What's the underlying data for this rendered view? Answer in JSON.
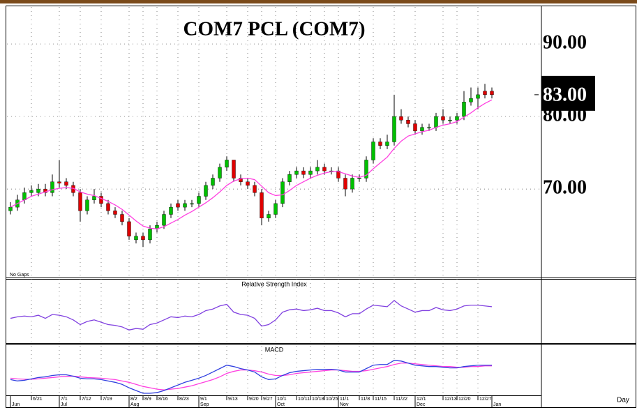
{
  "chart_data": {
    "type": "candlestick",
    "title": "COM7  PCL  (COM7)",
    "note": "No Gaps",
    "up_color": "#00c000",
    "down_color": "#e00000",
    "open": [
      67,
      67.5,
      68.5,
      69.5,
      69.5,
      70,
      69.5,
      71,
      71,
      70.5,
      69.5,
      67,
      68.5,
      69,
      68,
      67,
      66.5,
      65.5,
      63,
      63.5,
      63,
      64.5,
      65,
      66.5,
      68,
      67.5,
      68,
      68,
      69,
      70.5,
      71.5,
      73,
      74,
      71.5,
      71,
      70.5,
      69.5,
      66,
      66.5,
      68,
      71,
      72,
      72.5,
      72,
      72.5,
      73,
      72.5,
      72.5,
      71.5,
      70,
      71.5,
      71.5,
      74,
      76.5,
      76,
      76.5,
      80,
      79.5,
      79,
      78,
      78.5,
      78.5,
      80,
      79.5,
      79.5,
      80,
      82,
      82.5,
      83.5,
      83.5
    ],
    "high": [
      68.2,
      69.2,
      70.2,
      70.5,
      70.7,
      70.7,
      72,
      74,
      71.5,
      71,
      70,
      69,
      70,
      69.5,
      68.5,
      67.5,
      67,
      66,
      64,
      64,
      65,
      65.5,
      67,
      68,
      68.5,
      68.5,
      68.5,
      69.5,
      71,
      72,
      73.5,
      74.5,
      74,
      72,
      71.5,
      71,
      70,
      67,
      68.5,
      71.5,
      72.5,
      73,
      73,
      73,
      74,
      73.5,
      73,
      73,
      72,
      72,
      72,
      74.5,
      77,
      77,
      77.5,
      83,
      81,
      80,
      79.5,
      79,
      79,
      80.5,
      81,
      80,
      80.5,
      83.5,
      84,
      84,
      84.5,
      84
    ],
    "low": [
      66.5,
      67,
      68,
      69,
      69,
      69,
      69,
      70.2,
      70,
      69,
      65.5,
      66.5,
      68,
      67.5,
      66.5,
      66,
      65,
      63,
      62.5,
      62,
      62.5,
      64,
      64.5,
      66,
      67,
      67,
      67.5,
      67.5,
      68.5,
      70,
      71,
      72.5,
      71,
      70.5,
      70,
      69,
      65,
      65.5,
      66,
      67.5,
      70.5,
      71.5,
      71.5,
      71.5,
      72,
      72,
      72,
      71,
      69,
      69.5,
      71,
      71,
      73.5,
      75.5,
      75.5,
      76,
      79,
      78.5,
      77.5,
      77.5,
      78,
      78,
      79,
      79,
      79,
      79.5,
      81.5,
      81,
      82.5,
      82.5
    ],
    "close": [
      67.5,
      68.5,
      69.5,
      69.8,
      70,
      69.5,
      71,
      70.8,
      70.5,
      69.5,
      67,
      68.5,
      69,
      68,
      67,
      66.5,
      65.5,
      63.5,
      63.5,
      63,
      64.5,
      65,
      66.5,
      67.5,
      67.5,
      68,
      68,
      69,
      70.5,
      71.5,
      73,
      74,
      71.5,
      71,
      70.5,
      69.5,
      66,
      66.5,
      68,
      71,
      72,
      72.5,
      72,
      72.5,
      73,
      72.5,
      72.5,
      71.5,
      70,
      71.5,
      71.5,
      74,
      76.5,
      76,
      76.5,
      80,
      79.5,
      79,
      78,
      78.5,
      78.5,
      80,
      79.5,
      79.5,
      80,
      82,
      82.5,
      83,
      83,
      83
    ],
    "ma": {
      "color": "#ff40e0",
      "values": [
        67.5,
        68,
        68.5,
        69,
        69.3,
        69.6,
        69.9,
        70.1,
        70.2,
        70.1,
        69.6,
        69.3,
        69.1,
        68.7,
        68.3,
        67.8,
        67.2,
        66.4,
        65.6,
        64.9,
        64.6,
        64.5,
        64.8,
        65.3,
        65.8,
        66.4,
        66.9,
        67.5,
        68.1,
        68.8,
        69.6,
        70.5,
        71.1,
        71.4,
        71.5,
        71.3,
        70.4,
        69.5,
        69.1,
        69.2,
        69.8,
        70.5,
        71,
        71.5,
        71.9,
        72.2,
        72.4,
        72.4,
        72.1,
        71.8,
        71.6,
        71.9,
        72.8,
        73.6,
        74.4,
        75.6,
        76.6,
        77.3,
        77.6,
        77.9,
        78.1,
        78.5,
        78.8,
        79,
        79.3,
        79.9,
        80.5,
        81.2,
        81.8,
        82.3
      ]
    },
    "ylim": [
      57.8,
      95.1
    ],
    "yticks": [
      {
        "value": 70,
        "label": "70.00"
      },
      {
        "value": 80,
        "label": "80.00"
      },
      {
        "value": 90,
        "label": "90.00"
      }
    ],
    "last": {
      "value": 83,
      "label": "83.00"
    },
    "xlim": [
      -0.5,
      76
    ],
    "xticks": [
      {
        "value": 3,
        "label": "6/21"
      },
      {
        "value": 7,
        "label": "7/1"
      },
      {
        "value": 10,
        "label": "7/12"
      },
      {
        "value": 13,
        "label": "7/19"
      },
      {
        "value": 17,
        "label": "8/2"
      },
      {
        "value": 19,
        "label": "8/9"
      },
      {
        "value": 21,
        "label": "8/16"
      },
      {
        "value": 24,
        "label": "8/23"
      },
      {
        "value": 27,
        "label": "9/1"
      },
      {
        "value": 31,
        "label": "9/13"
      },
      {
        "value": 34,
        "label": "9/20"
      },
      {
        "value": 36,
        "label": "9/27"
      },
      {
        "value": 38,
        "label": "10/1"
      },
      {
        "value": 41,
        "label": "10/11"
      },
      {
        "value": 43,
        "label": "10/18"
      },
      {
        "value": 45,
        "label": "10/25"
      },
      {
        "value": 47,
        "label": "11/1"
      },
      {
        "value": 50,
        "label": "11/8"
      },
      {
        "value": 52,
        "label": "11/15"
      },
      {
        "value": 55,
        "label": "11/22"
      },
      {
        "value": 58,
        "label": "12/1"
      },
      {
        "value": 62,
        "label": "12/13"
      },
      {
        "value": 64,
        "label": "12/20"
      },
      {
        "value": 67,
        "label": "12/27"
      }
    ],
    "month_ticks": [
      {
        "value": 0,
        "label": "Jun"
      },
      {
        "value": 7,
        "label": "Jul"
      },
      {
        "value": 17,
        "label": "Aug"
      },
      {
        "value": 27,
        "label": "Sep"
      },
      {
        "value": 38,
        "label": "Oct"
      },
      {
        "value": 47,
        "label": "Nov"
      },
      {
        "value": 58,
        "label": "Dec"
      },
      {
        "value": 69,
        "label": "Jan"
      }
    ],
    "x_unit": "Day",
    "rsi": {
      "title": "Relative Strength Index",
      "color": "#8040e0",
      "ylim": [
        20,
        90
      ],
      "values": [
        50,
        52,
        53,
        52,
        54,
        50,
        55,
        54,
        52,
        48,
        42,
        46,
        48,
        45,
        42,
        41,
        39,
        35,
        37,
        36,
        42,
        44,
        48,
        52,
        51,
        53,
        52,
        55,
        60,
        62,
        66,
        68,
        58,
        55,
        54,
        50,
        40,
        42,
        48,
        58,
        61,
        62,
        60,
        61,
        63,
        60,
        60,
        57,
        52,
        56,
        56,
        62,
        67,
        66,
        65,
        73,
        66,
        62,
        58,
        60,
        60,
        64,
        61,
        60,
        62,
        66,
        67,
        67,
        66,
        65
      ]
    },
    "macd": {
      "title": "MACD",
      "color": "#3040e0",
      "ylim": [
        -3,
        3
      ],
      "values": [
        -0.8,
        -1.0,
        -0.9,
        -0.7,
        -0.5,
        -0.4,
        -0.2,
        -0.1,
        -0.1,
        -0.3,
        -0.6,
        -0.7,
        -0.7,
        -0.8,
        -1.0,
        -1.2,
        -1.5,
        -2.0,
        -2.4,
        -2.8,
        -2.8,
        -2.7,
        -2.4,
        -2.0,
        -1.6,
        -1.2,
        -0.9,
        -0.6,
        -0.2,
        0.3,
        0.8,
        1.3,
        1.1,
        0.8,
        0.6,
        0.3,
        -0.4,
        -0.8,
        -0.7,
        -0.2,
        0.2,
        0.4,
        0.5,
        0.6,
        0.7,
        0.7,
        0.7,
        0.6,
        0.3,
        0.3,
        0.3,
        0.8,
        1.3,
        1.4,
        1.4,
        2.0,
        1.9,
        1.6,
        1.3,
        1.2,
        1.1,
        1.1,
        1.0,
        0.9,
        0.9,
        1.1,
        1.2,
        1.3,
        1.3,
        1.3
      ],
      "signal": {
        "color": "#ff40e0",
        "values": [
          -0.6,
          -0.7,
          -0.75,
          -0.75,
          -0.7,
          -0.6,
          -0.5,
          -0.4,
          -0.35,
          -0.3,
          -0.4,
          -0.5,
          -0.55,
          -0.6,
          -0.7,
          -0.8,
          -1.0,
          -1.2,
          -1.5,
          -1.8,
          -2.0,
          -2.2,
          -2.3,
          -2.2,
          -2.1,
          -1.9,
          -1.7,
          -1.4,
          -1.1,
          -0.8,
          -0.4,
          0.1,
          0.4,
          0.6,
          0.6,
          0.5,
          0.3,
          0.0,
          -0.2,
          -0.2,
          -0.1,
          0.1,
          0.2,
          0.3,
          0.4,
          0.5,
          0.6,
          0.6,
          0.5,
          0.4,
          0.4,
          0.5,
          0.7,
          0.9,
          1.1,
          1.4,
          1.6,
          1.6,
          1.5,
          1.4,
          1.3,
          1.2,
          1.1,
          1.1,
          1.0,
          1.0,
          1.1,
          1.1,
          1.2,
          1.2
        ]
      }
    }
  }
}
